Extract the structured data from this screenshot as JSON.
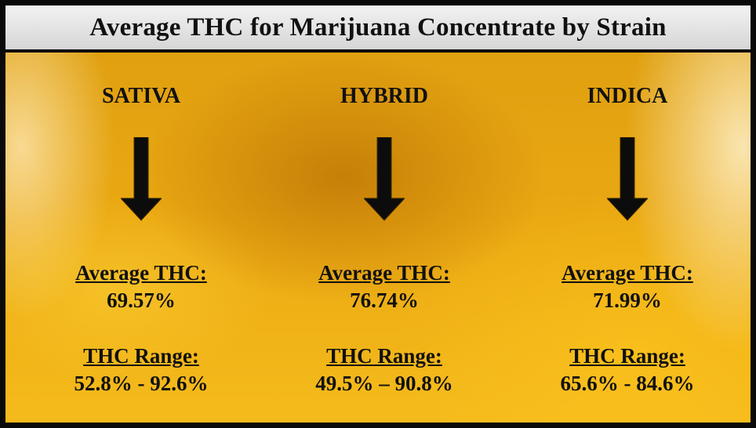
{
  "title": "Average THC for Marijuana Concentrate by Strain",
  "columns": [
    {
      "strain": "SATIVA",
      "average_label": "Average THC:",
      "average": "69.57%",
      "range_label": "THC Range:",
      "range": "52.8% - 92.6%"
    },
    {
      "strain": "HYBRID",
      "average_label": "Average THC:",
      "average": "76.74%",
      "range_label": "THC Range:",
      "range": "49.5% – 90.8%"
    },
    {
      "strain": "INDICA",
      "average_label": "Average THC:",
      "average": "71.99%",
      "range_label": "THC Range:",
      "range": "65.6% - 84.6%"
    }
  ]
}
